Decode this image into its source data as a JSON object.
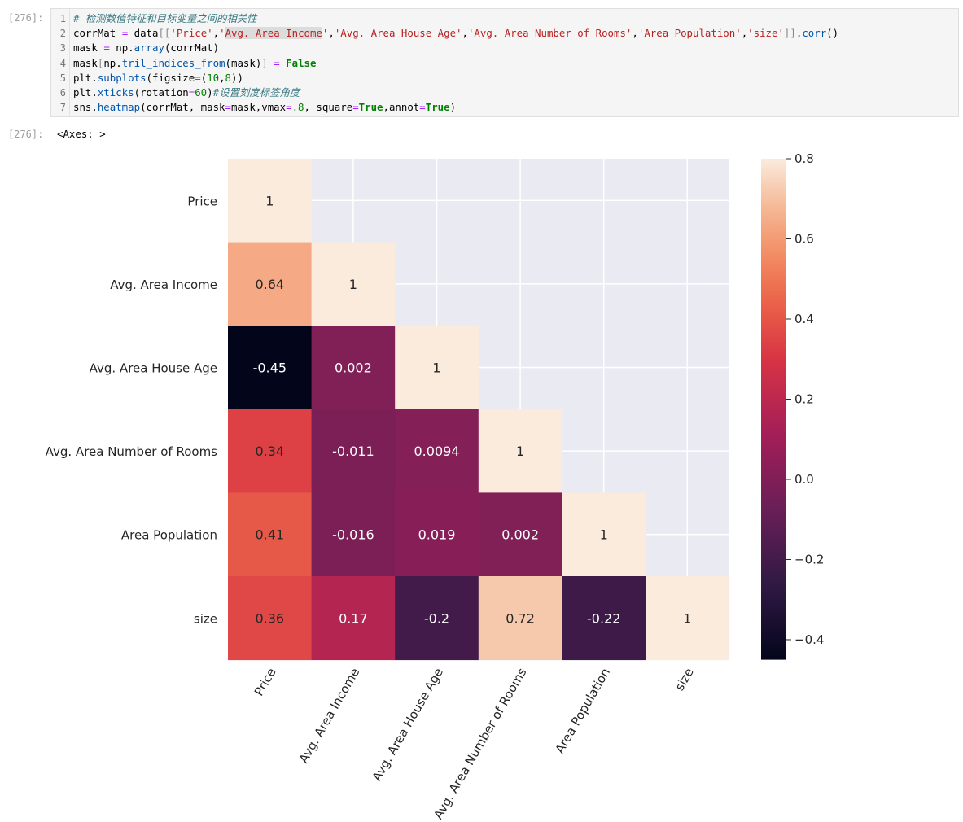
{
  "cell": {
    "in_prompt": "[276]:",
    "out_prompt": "[276]:",
    "output_text": "<Axes: >",
    "code_lines": [
      {
        "num": "1",
        "tokens": [
          {
            "t": "# 检测数值特征和目标变量之间的相关性",
            "c": "c-com"
          }
        ]
      },
      {
        "num": "2",
        "tokens": [
          {
            "t": "corrMat ",
            "c": ""
          },
          {
            "t": "=",
            "c": "c-op"
          },
          {
            "t": " data",
            "c": ""
          },
          {
            "t": "[[",
            "c": "c-br"
          },
          {
            "t": "'Price'",
            "c": "c-str"
          },
          {
            "t": ",",
            "c": ""
          },
          {
            "t": "'",
            "c": "c-str"
          },
          {
            "t": "Avg. Area Income",
            "c": "c-str hl"
          },
          {
            "t": "'",
            "c": "c-str"
          },
          {
            "t": ",",
            "c": ""
          },
          {
            "t": "'Avg. Area House Age'",
            "c": "c-str"
          },
          {
            "t": ",",
            "c": ""
          },
          {
            "t": "'Avg. Area Number of Rooms'",
            "c": "c-str"
          },
          {
            "t": ",",
            "c": ""
          },
          {
            "t": "'Area Population'",
            "c": "c-str"
          },
          {
            "t": ",",
            "c": ""
          },
          {
            "t": "'size'",
            "c": "c-str"
          },
          {
            "t": "]]",
            "c": "c-br"
          },
          {
            "t": ".",
            "c": ""
          },
          {
            "t": "corr",
            "c": "c-fn"
          },
          {
            "t": "()",
            "c": ""
          }
        ]
      },
      {
        "num": "3",
        "tokens": [
          {
            "t": "mask ",
            "c": ""
          },
          {
            "t": "=",
            "c": "c-op"
          },
          {
            "t": " np.",
            "c": ""
          },
          {
            "t": "array",
            "c": "c-fn"
          },
          {
            "t": "(corrMat)",
            "c": ""
          }
        ]
      },
      {
        "num": "4",
        "tokens": [
          {
            "t": "mask",
            "c": ""
          },
          {
            "t": "[",
            "c": "c-br"
          },
          {
            "t": "np.",
            "c": ""
          },
          {
            "t": "tril_indices_from",
            "c": "c-fn"
          },
          {
            "t": "(mask)",
            "c": ""
          },
          {
            "t": "]",
            "c": "c-br"
          },
          {
            "t": " ",
            "c": ""
          },
          {
            "t": "=",
            "c": "c-op"
          },
          {
            "t": " ",
            "c": ""
          },
          {
            "t": "False",
            "c": "c-kw"
          }
        ]
      },
      {
        "num": "5",
        "tokens": [
          {
            "t": "plt.",
            "c": ""
          },
          {
            "t": "subplots",
            "c": "c-fn"
          },
          {
            "t": "(figsize",
            "c": ""
          },
          {
            "t": "=",
            "c": "c-op"
          },
          {
            "t": "(",
            "c": ""
          },
          {
            "t": "10",
            "c": "c-num"
          },
          {
            "t": ",",
            "c": ""
          },
          {
            "t": "8",
            "c": "c-num"
          },
          {
            "t": "))",
            "c": ""
          }
        ]
      },
      {
        "num": "6",
        "tokens": [
          {
            "t": "plt.",
            "c": ""
          },
          {
            "t": "xticks",
            "c": "c-fn"
          },
          {
            "t": "(rotation",
            "c": ""
          },
          {
            "t": "=",
            "c": "c-op"
          },
          {
            "t": "60",
            "c": "c-num"
          },
          {
            "t": ")",
            "c": ""
          },
          {
            "t": "#设置刻度标签角度",
            "c": "c-com"
          }
        ]
      },
      {
        "num": "7",
        "tokens": [
          {
            "t": "sns.",
            "c": ""
          },
          {
            "t": "heatmap",
            "c": "c-fn"
          },
          {
            "t": "(corrMat, mask",
            "c": ""
          },
          {
            "t": "=",
            "c": "c-op"
          },
          {
            "t": "mask,vmax",
            "c": ""
          },
          {
            "t": "=",
            "c": "c-op"
          },
          {
            "t": ".8",
            "c": "c-num"
          },
          {
            "t": ", square",
            "c": ""
          },
          {
            "t": "=",
            "c": "c-op"
          },
          {
            "t": "True",
            "c": "c-kw"
          },
          {
            "t": ",annot",
            "c": ""
          },
          {
            "t": "=",
            "c": "c-op"
          },
          {
            "t": "True",
            "c": "c-kw"
          },
          {
            "t": ")",
            "c": ""
          }
        ]
      }
    ]
  },
  "chart_data": {
    "type": "heatmap",
    "variables": [
      "Price",
      "Avg. Area Income",
      "Avg. Area House Age",
      "Avg. Area Number of Rooms",
      "Area Population",
      "size"
    ],
    "cells": [
      {
        "row": 0,
        "col": 0,
        "value": 1,
        "label": "1"
      },
      {
        "row": 1,
        "col": 0,
        "value": 0.64,
        "label": "0.64"
      },
      {
        "row": 1,
        "col": 1,
        "value": 1,
        "label": "1"
      },
      {
        "row": 2,
        "col": 0,
        "value": -0.45,
        "label": "-0.45"
      },
      {
        "row": 2,
        "col": 1,
        "value": 0.002,
        "label": "0.002"
      },
      {
        "row": 2,
        "col": 2,
        "value": 1,
        "label": "1"
      },
      {
        "row": 3,
        "col": 0,
        "value": 0.34,
        "label": "0.34"
      },
      {
        "row": 3,
        "col": 1,
        "value": -0.011,
        "label": "-0.011"
      },
      {
        "row": 3,
        "col": 2,
        "value": 0.0094,
        "label": "0.0094"
      },
      {
        "row": 3,
        "col": 3,
        "value": 1,
        "label": "1"
      },
      {
        "row": 4,
        "col": 0,
        "value": 0.41,
        "label": "0.41"
      },
      {
        "row": 4,
        "col": 1,
        "value": -0.016,
        "label": "-0.016"
      },
      {
        "row": 4,
        "col": 2,
        "value": 0.019,
        "label": "0.019"
      },
      {
        "row": 4,
        "col": 3,
        "value": 0.002,
        "label": "0.002"
      },
      {
        "row": 4,
        "col": 4,
        "value": 1,
        "label": "1"
      },
      {
        "row": 5,
        "col": 0,
        "value": 0.36,
        "label": "0.36"
      },
      {
        "row": 5,
        "col": 1,
        "value": 0.17,
        "label": "0.17"
      },
      {
        "row": 5,
        "col": 2,
        "value": -0.2,
        "label": "-0.2"
      },
      {
        "row": 5,
        "col": 3,
        "value": 0.72,
        "label": "0.72"
      },
      {
        "row": 5,
        "col": 4,
        "value": -0.22,
        "label": "-0.22"
      },
      {
        "row": 5,
        "col": 5,
        "value": 1,
        "label": "1"
      }
    ],
    "vmin": -0.45,
    "vmax": 0.8,
    "colormap": "rocket",
    "colorbar_ticks": [
      {
        "value": 0.8,
        "label": "0.8"
      },
      {
        "value": 0.6,
        "label": "0.6"
      },
      {
        "value": 0.4,
        "label": "0.4"
      },
      {
        "value": 0.2,
        "label": "0.2"
      },
      {
        "value": 0.0,
        "label": "0.0"
      },
      {
        "value": -0.2,
        "label": "−0.2"
      },
      {
        "value": -0.4,
        "label": "−0.4"
      }
    ],
    "x_tick_rotation": 60,
    "grid": true,
    "colors": {
      "background": "#eaeaf2",
      "grid": "#ffffff"
    }
  }
}
